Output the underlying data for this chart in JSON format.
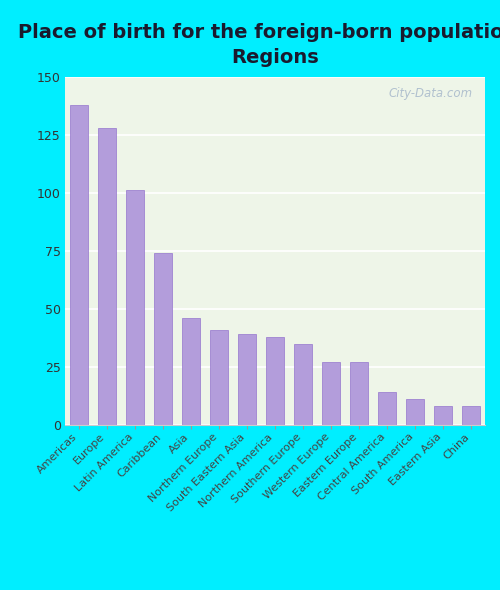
{
  "title": "Place of birth for the foreign-born population -\nRegions",
  "categories": [
    "Americas",
    "Europe",
    "Latin America",
    "Caribbean",
    "Asia",
    "Northern Europe",
    "South Eastern Asia",
    "Northern America",
    "Southern Europe",
    "Western Europe",
    "Eastern Europe",
    "Central America",
    "South America",
    "Eastern Asia",
    "China"
  ],
  "values": [
    138,
    128,
    101,
    74,
    46,
    41,
    39,
    38,
    35,
    27,
    27,
    14,
    11,
    8,
    8
  ],
  "bar_color": "#b39ddb",
  "bar_edge_color": "#9575cd",
  "background_outer": "#00eeff",
  "background_inner": "#eef5e8",
  "ylim": [
    0,
    150
  ],
  "yticks": [
    0,
    25,
    50,
    75,
    100,
    125,
    150
  ],
  "title_fontsize": 14,
  "tick_label_fontsize": 8.0,
  "ytick_label_fontsize": 9,
  "watermark_text": "City-Data.com",
  "watermark_color": "#aabbcc",
  "title_color": "#1a1a2e"
}
